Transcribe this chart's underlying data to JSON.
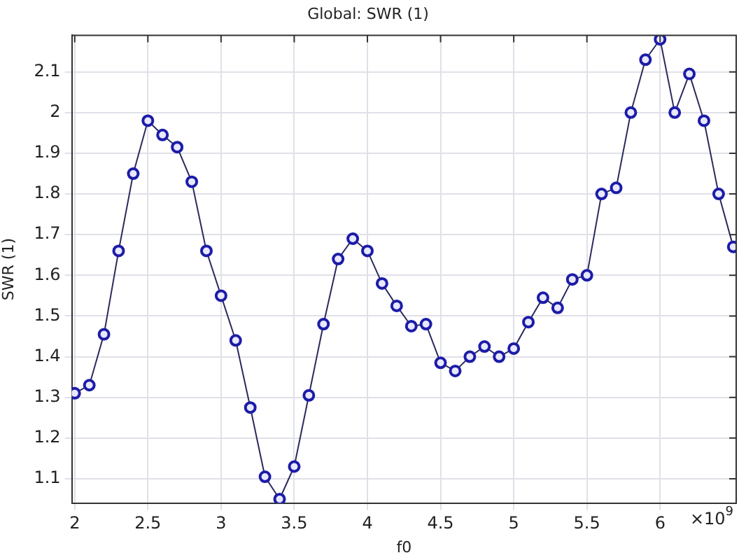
{
  "chart_data": {
    "type": "line",
    "title": "Global: SWR (1)",
    "xlabel": "f0",
    "ylabel": "SWR (1)",
    "annotations": [
      "×10$^{9}$"
    ],
    "x": [
      2.0,
      2.1,
      2.2,
      2.3,
      2.4,
      2.5,
      2.6,
      2.7,
      2.8,
      2.9,
      3.0,
      3.1,
      3.2,
      3.3,
      3.4,
      3.5,
      3.6,
      3.7,
      3.8,
      3.9,
      4.0,
      4.1,
      4.2,
      4.3,
      4.4,
      4.5,
      4.6,
      4.7,
      4.8,
      4.9,
      5.0,
      5.1,
      5.2,
      5.3,
      5.4,
      5.5,
      5.6,
      5.7,
      5.8,
      5.9,
      6.0,
      6.1,
      6.2,
      6.3,
      6.4,
      6.5
    ],
    "series": [
      {
        "color": "#1c1ca8",
        "values": [
          1.31,
          1.33,
          1.455,
          1.66,
          1.85,
          1.98,
          1.945,
          1.915,
          1.83,
          1.66,
          1.55,
          1.44,
          1.275,
          1.105,
          1.05,
          1.13,
          1.305,
          1.48,
          1.64,
          1.69,
          1.66,
          1.58,
          1.525,
          1.475,
          1.48,
          1.385,
          1.365,
          1.4,
          1.425,
          1.4,
          1.42,
          1.485,
          1.545,
          1.52,
          1.59,
          1.6,
          1.8,
          1.815,
          2.0,
          2.13,
          2.18,
          2.0,
          2.095,
          1.98,
          1.8,
          1.67
        ]
      }
    ],
    "xlim": [
      1.98,
      6.52
    ],
    "xticks": [
      2,
      2.5,
      3,
      3.5,
      4,
      4.5,
      5,
      5.5,
      6
    ],
    "ylim": [
      1.04,
      2.19
    ],
    "yticks": [
      1.1,
      1.2,
      1.3,
      1.4,
      1.5,
      1.6,
      1.7,
      1.8,
      1.9,
      2,
      2.1
    ],
    "grid": true,
    "marker": "circle",
    "line_style": "solid",
    "legend": false
  }
}
